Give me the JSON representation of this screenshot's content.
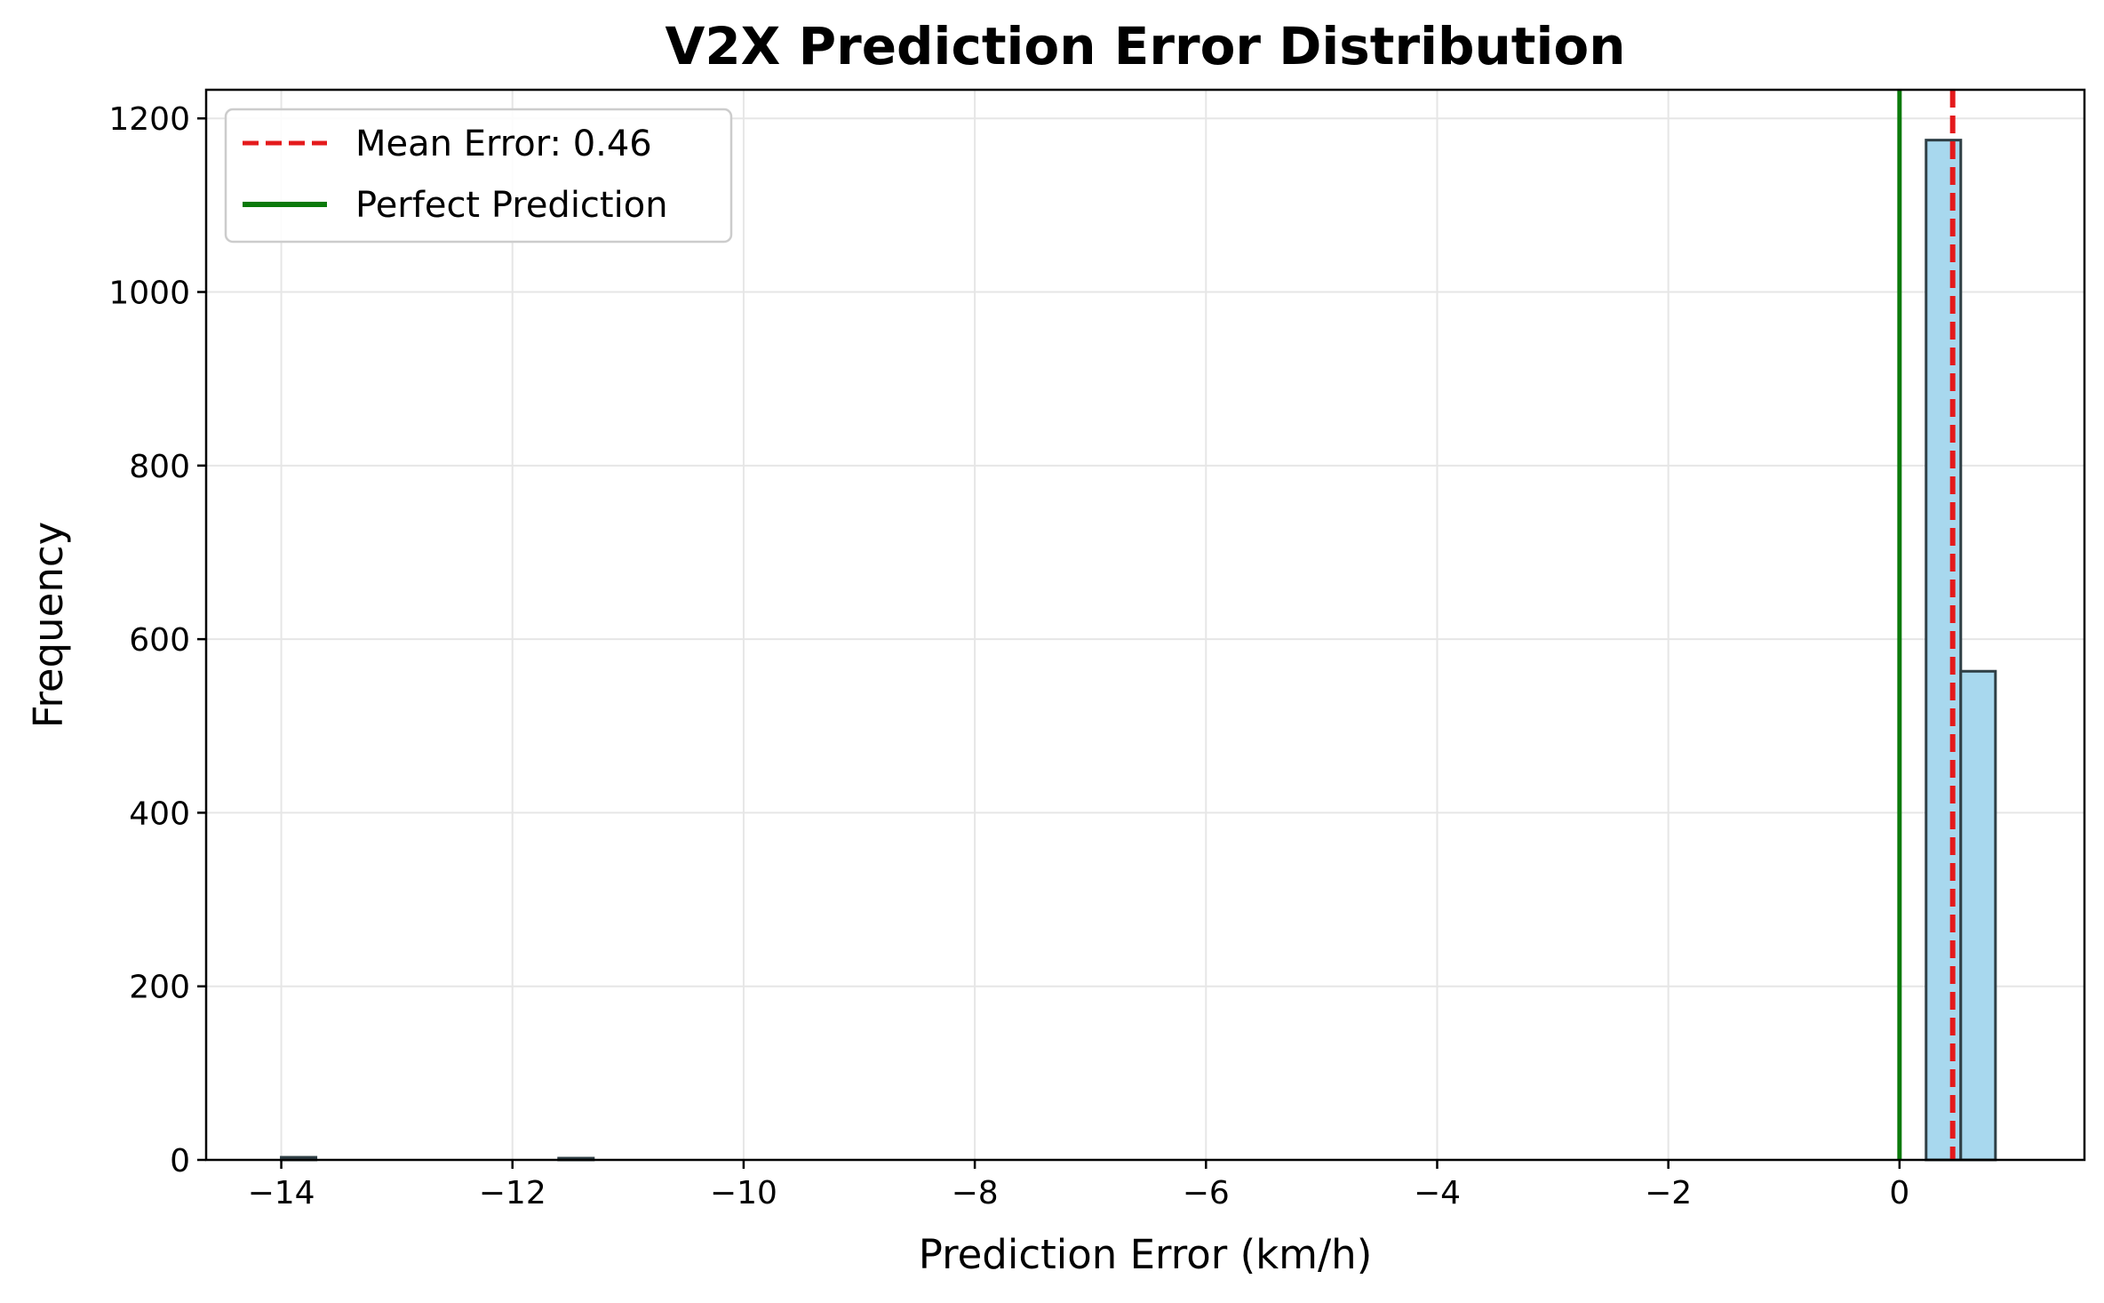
{
  "chart_data": {
    "type": "bar",
    "title": "V2X Prediction Error Distribution",
    "xlabel": "Prediction Error (km/h)",
    "ylabel": "Frequency",
    "xlim": [
      -14.65,
      1.6
    ],
    "ylim": [
      0,
      1233
    ],
    "xticks": [
      -14,
      -12,
      -10,
      -8,
      -6,
      -4,
      -2,
      0
    ],
    "yticks": [
      0,
      200,
      400,
      600,
      800,
      1000,
      1200
    ],
    "grid": true,
    "legend_position": "top-left",
    "bins": [
      {
        "x0": -14.0,
        "x1": -13.7,
        "count": 3
      },
      {
        "x0": -11.6,
        "x1": -11.3,
        "count": 2
      },
      {
        "x0": 0.23,
        "x1": 0.53,
        "count": 1175
      },
      {
        "x0": 0.53,
        "x1": 0.83,
        "count": 563
      }
    ],
    "reference_lines": [
      {
        "name": "Mean Error: 0.46",
        "x": 0.46,
        "style": "dashed",
        "color": "#e41a1c"
      },
      {
        "name": "Perfect Prediction",
        "x": 0,
        "style": "solid",
        "color": "#0a7a0a"
      }
    ],
    "colors": {
      "bar_fill": "#a8d8ee",
      "bar_edge": "#2f3f45",
      "grid": "#e6e6e6"
    }
  }
}
